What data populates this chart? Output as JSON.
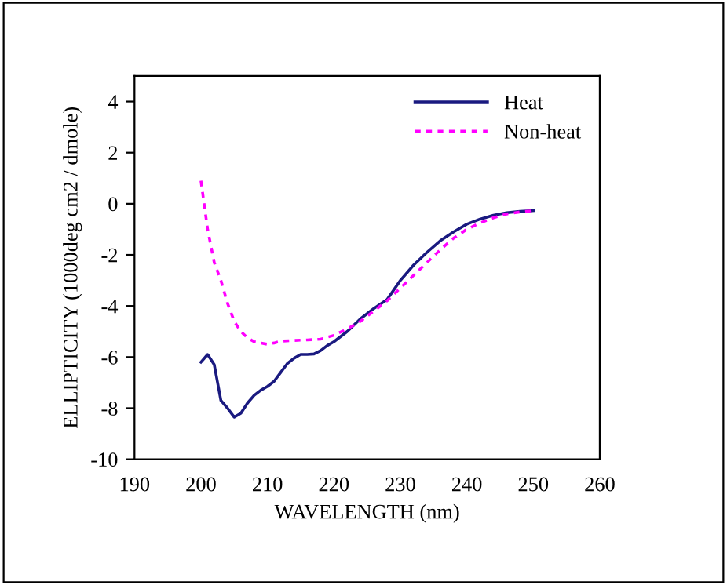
{
  "chart_data": {
    "type": "line",
    "xlabel": "WAVELENGTH (nm)",
    "ylabel": "ELLIPTICITY (1000deg cm2 / dmole)",
    "xlim": [
      190,
      260
    ],
    "xticks": [
      190,
      200,
      210,
      220,
      230,
      240,
      250,
      260
    ],
    "ylim": [
      -10,
      5
    ],
    "yticks": [
      -10,
      -8,
      -6,
      -4,
      -2,
      0,
      2,
      4
    ],
    "grid": false,
    "legend": "top right",
    "marker": "none",
    "series": [
      {
        "name": "Heat",
        "color": "#1a1a80",
        "line_style": "solid",
        "x": [
          200,
          201,
          202,
          203,
          204,
          205,
          206,
          207,
          208,
          209,
          210,
          211,
          212,
          213,
          214,
          215,
          216,
          217,
          218,
          219,
          220,
          222,
          224,
          226,
          228,
          230,
          232,
          234,
          236,
          238,
          240,
          242,
          244,
          246,
          248,
          250
        ],
        "values": [
          -6.2,
          -5.9,
          -6.3,
          -7.7,
          -8.0,
          -8.35,
          -8.2,
          -7.8,
          -7.5,
          -7.3,
          -7.15,
          -6.95,
          -6.6,
          -6.25,
          -6.05,
          -5.9,
          -5.9,
          -5.88,
          -5.75,
          -5.55,
          -5.4,
          -5.0,
          -4.5,
          -4.1,
          -3.75,
          -3.0,
          -2.4,
          -1.9,
          -1.45,
          -1.1,
          -0.8,
          -0.6,
          -0.45,
          -0.35,
          -0.3,
          -0.27
        ]
      },
      {
        "name": "Non-heat",
        "color": "#ff00ff",
        "line_style": "dotted",
        "x": [
          200,
          201,
          202,
          203,
          204,
          205,
          206,
          207,
          208,
          209,
          210,
          211,
          212,
          214,
          216,
          218,
          220,
          222,
          224,
          226,
          228,
          230,
          232,
          234,
          236,
          238,
          240,
          242,
          244,
          246,
          248,
          250
        ],
        "values": [
          0.9,
          -1.0,
          -2.3,
          -3.0,
          -3.9,
          -4.6,
          -5.0,
          -5.25,
          -5.4,
          -5.45,
          -5.5,
          -5.45,
          -5.38,
          -5.35,
          -5.33,
          -5.3,
          -5.15,
          -4.9,
          -4.6,
          -4.2,
          -3.8,
          -3.3,
          -2.8,
          -2.3,
          -1.8,
          -1.35,
          -1.0,
          -0.75,
          -0.55,
          -0.4,
          -0.32,
          -0.27
        ]
      }
    ]
  }
}
